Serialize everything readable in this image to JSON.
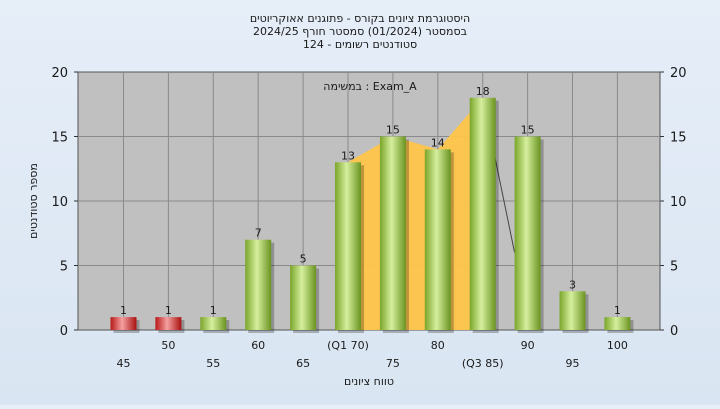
{
  "titles": {
    "line1": "היסטוגרמת ציונים בקורס - פתוגנים אאוקריוטים",
    "line2": "בסמסטר  (01/2024)  סמסטר חורף 2024/25",
    "line3": "סטודנטים רשומים - 124"
  },
  "chart_data": {
    "type": "bar",
    "annotation": "במשימה : Exam_A",
    "xlabel": "טווח ציונים",
    "ylabel": "מספר סטודנטים",
    "ylim": [
      0,
      20
    ],
    "yticks": [
      0,
      5,
      10,
      15,
      20
    ],
    "categories": [
      "45",
      "50",
      "55",
      "60",
      "65",
      "(Q1 70)",
      "75",
      "80",
      "(Q3 85)",
      "90",
      "95",
      "100"
    ],
    "values": [
      1,
      1,
      1,
      7,
      5,
      13,
      15,
      14,
      18,
      15,
      3,
      1
    ],
    "bar_colors": [
      "red",
      "red",
      "green",
      "green",
      "green",
      "green",
      "green",
      "green",
      "green",
      "green",
      "green",
      "green"
    ],
    "interquartile_band": {
      "from_category": "(Q1 70)",
      "to_category": "(Q3 85)"
    },
    "colors": {
      "plot_bg": "#c0c0c0",
      "grid": "#8a8a8a",
      "band": "#ffc54a",
      "green_light": "#cfe89a",
      "green_dark": "#6f9a22",
      "red_light": "#f08080",
      "red_dark": "#b01010"
    },
    "grid": true
  }
}
